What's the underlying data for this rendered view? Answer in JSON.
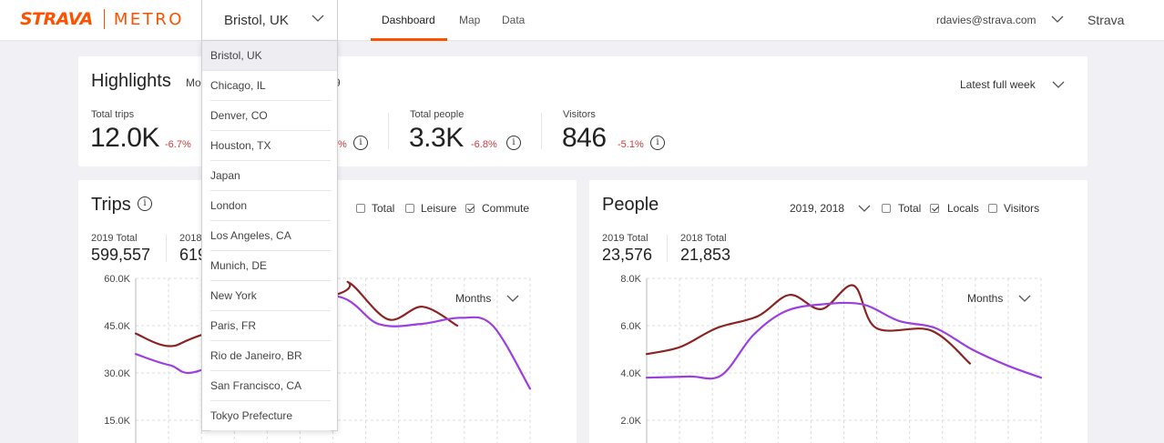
{
  "brand": {
    "strava": "STRAVA",
    "metro": "METRO"
  },
  "city_select": {
    "value": "Bristol, UK"
  },
  "nav": {
    "dashboard": "Dashboard",
    "map": "Map",
    "data": "Data"
  },
  "user": {
    "email": "rdavies@strava.com",
    "brand_link": "Strava"
  },
  "city_menu": [
    "Bristol, UK",
    "Chicago, IL",
    "Denver, CO",
    "Houston, TX",
    "Japan",
    "London",
    "Los Angeles, CA",
    "Munich, DE",
    "New York",
    "Paris, FR",
    "Rio de Janeiro, BR",
    "San Francisco, CA",
    "Tokyo Prefecture"
  ],
  "highlights": {
    "title": "Highlights",
    "subtitle_left": "Mo",
    "subtitle_right": "9",
    "period": "Latest full week",
    "stats": [
      {
        "label": "Total trips",
        "value": "12.0K",
        "change": "-6.7%"
      },
      {
        "label": "",
        "value": "",
        "change": "%"
      },
      {
        "label": "Total people",
        "value": "3.3K",
        "change": "-6.8%"
      },
      {
        "label": "Visitors",
        "value": "846",
        "change": "-5.1%"
      }
    ]
  },
  "trips": {
    "title": "Trips",
    "filters": [
      {
        "label": "Total",
        "checked": false
      },
      {
        "label": "Leisure",
        "checked": false
      },
      {
        "label": "Commute",
        "checked": true
      }
    ],
    "total_2019_label": "2019 Total",
    "total_2019": "599,557",
    "total_2018_label": "2018",
    "total_2018": "619",
    "granularity": "Months",
    "y_ticks": [
      "60.0K",
      "45.0K",
      "30.0K",
      "15.0K"
    ]
  },
  "people": {
    "title": "People",
    "years": "2019, 2018",
    "filters": [
      {
        "label": "Total",
        "checked": false
      },
      {
        "label": "Locals",
        "checked": true
      },
      {
        "label": "Visitors",
        "checked": false
      }
    ],
    "total_2019_label": "2019 Total",
    "total_2019": "23,576",
    "total_2018_label": "2018 Total",
    "total_2018": "21,853",
    "granularity": "Months",
    "y_ticks": [
      "8.0K",
      "6.0K",
      "4.0K",
      "2.0K"
    ]
  },
  "colors": {
    "accent": "#fc5200",
    "series_2018": "#8b2323",
    "series_2019": "#9b3fe0",
    "negative": "#d23b3b"
  },
  "chart_data": [
    {
      "type": "line",
      "title": "Trips",
      "ylim": [
        0,
        60000
      ],
      "series": [
        {
          "name": "2018",
          "values": [
            42500,
            38500,
            42500,
            55000,
            58500,
            47000,
            51000,
            45000
          ]
        },
        {
          "name": "2019",
          "values": [
            36000,
            32500,
            31500,
            54000,
            45500,
            45500,
            47500,
            45000,
            25000
          ]
        }
      ]
    },
    {
      "type": "line",
      "title": "People",
      "ylim": [
        0,
        8000
      ],
      "series": [
        {
          "name": "2018",
          "values": [
            4800,
            5100,
            5900,
            6400,
            7300,
            6700,
            7700,
            5900,
            5800,
            4400
          ]
        },
        {
          "name": "2019",
          "values": [
            3800,
            3850,
            3900,
            5600,
            6600,
            6900,
            6900,
            6200,
            5900,
            5000,
            4300,
            3800
          ]
        }
      ]
    }
  ]
}
